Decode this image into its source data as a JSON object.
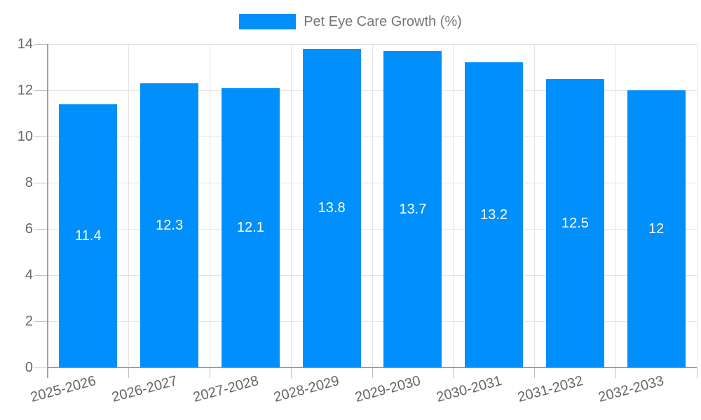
{
  "legend": {
    "label": "Pet Eye Care Growth (%)"
  },
  "colors": {
    "bar": "#008FFB",
    "axis_label": "#666666",
    "legend_text": "#757575",
    "data_label": "#ffffff",
    "gridline": "#e4e4e4",
    "axis_line": "#a0a0a0",
    "tick_mark": "#c0c0c0",
    "background": "#ffffff"
  },
  "chart_data": {
    "type": "bar",
    "title": "",
    "legend": "Pet Eye Care Growth (%)",
    "legend_position": "top",
    "categories": [
      "2025-2026",
      "2026-2027",
      "2027-2028",
      "2028-2029",
      "2029-2030",
      "2030-2031",
      "2031-2032",
      "2032-2033"
    ],
    "values": [
      11.4,
      12.3,
      12.1,
      13.8,
      13.7,
      13.2,
      12.5,
      12
    ],
    "data_labels": [
      "11.4",
      "12.3",
      "12.1",
      "13.8",
      "13.7",
      "13.2",
      "12.5",
      "12"
    ],
    "xlabel": "",
    "ylabel": "",
    "ylim": [
      0,
      14
    ],
    "yticks": [
      0,
      2,
      4,
      6,
      8,
      10,
      12,
      14
    ],
    "grid": true
  }
}
